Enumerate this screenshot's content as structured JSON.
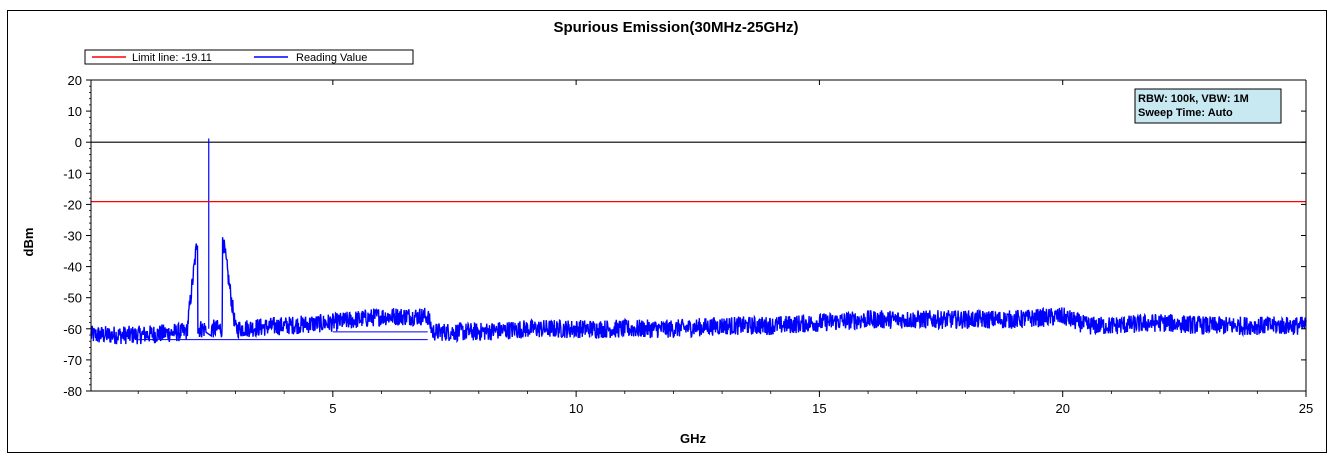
{
  "colors": {
    "limit": "#ff0000",
    "reading": "#0000ff",
    "info_box_bg": "#c9e9f2",
    "zero_line": "#000000"
  },
  "chart_data": {
    "type": "line",
    "title": "Spurious Emission(30MHz-25GHz)",
    "xlabel": "GHz",
    "ylabel": "dBm",
    "xlim": [
      0.03,
      25
    ],
    "ylim": [
      -80,
      20
    ],
    "x_ticks": [
      5,
      10,
      15,
      20,
      25
    ],
    "y_ticks": [
      20,
      10,
      0,
      -10,
      -20,
      -30,
      -40,
      -50,
      -60,
      -70,
      -80
    ],
    "grid": false,
    "legend_position": "top-left",
    "reference_line": 0,
    "limit_line": -19.11,
    "annotation": [
      "RBW: 100k, VBW: 1M",
      "Sweep Time: Auto"
    ],
    "series": [
      {
        "name": "Limit line: -19.11",
        "color": "#ff0000",
        "x": [
          0.03,
          25
        ],
        "y": [
          -19.11,
          -19.11
        ]
      },
      {
        "name": "Reading Value",
        "color": "#0000ff",
        "x": [
          0.03,
          1,
          2,
          2.45,
          3,
          4,
          5,
          6,
          6.95,
          7.05,
          8,
          9,
          10,
          11,
          12,
          13,
          14,
          15,
          16,
          17,
          18,
          19,
          20,
          20.5,
          21,
          22,
          23,
          24,
          25
        ],
        "y": [
          -62,
          -62,
          -61,
          1.2,
          -60,
          -59,
          -58,
          -56,
          -56,
          -61,
          -61,
          -60,
          -60,
          -60,
          -60,
          -59,
          -59,
          -58,
          -57,
          -57,
          -57,
          -57,
          -56,
          -59,
          -59,
          -58,
          -59,
          -59,
          -59
        ]
      }
    ]
  }
}
